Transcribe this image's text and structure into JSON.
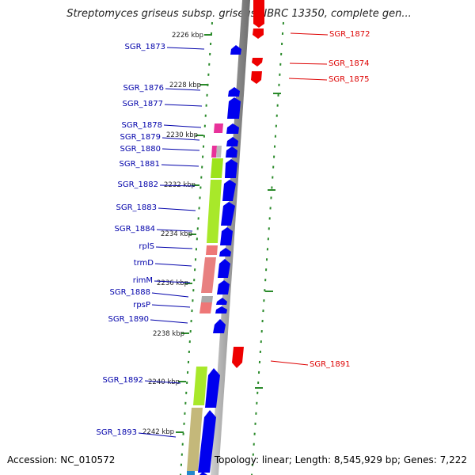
{
  "title": "Streptomyces griseus subsp. griseus NBRC 13350, complete gen...",
  "footer": {
    "accession": "Accession: NC_010572",
    "stats": "Topology: linear; Length: 8,545,929 bp; Genes: 7,222"
  },
  "colors": {
    "forward_gene": "#0000ee",
    "reverse_gene": "#ee0000",
    "left_label": "#0000aa",
    "right_label": "#dd0000",
    "ruler_tick": "#2a8a2a",
    "backbone": "#999999"
  },
  "ruler_labels": [
    "2226 kbp",
    "2228 kbp",
    "2230 kbp",
    "2232 kbp",
    "2234 kbp",
    "2236 kbp",
    "2238 kbp",
    "2240 kbp",
    "2242 kbp"
  ],
  "left_genes": [
    "SGR_1873",
    "SGR_1876",
    "SGR_1877",
    "SGR_1878",
    "SGR_1879",
    "SGR_1880",
    "SGR_1881",
    "SGR_1882",
    "SGR_1883",
    "SGR_1884",
    "rplS",
    "trmD",
    "rimM",
    "SGR_1888",
    "rpsP",
    "SGR_1890",
    "SGR_1892",
    "SGR_1893"
  ],
  "right_genes": [
    "SGR_1872",
    "SGR_1874",
    "SGR_1875",
    "SGR_1891"
  ]
}
